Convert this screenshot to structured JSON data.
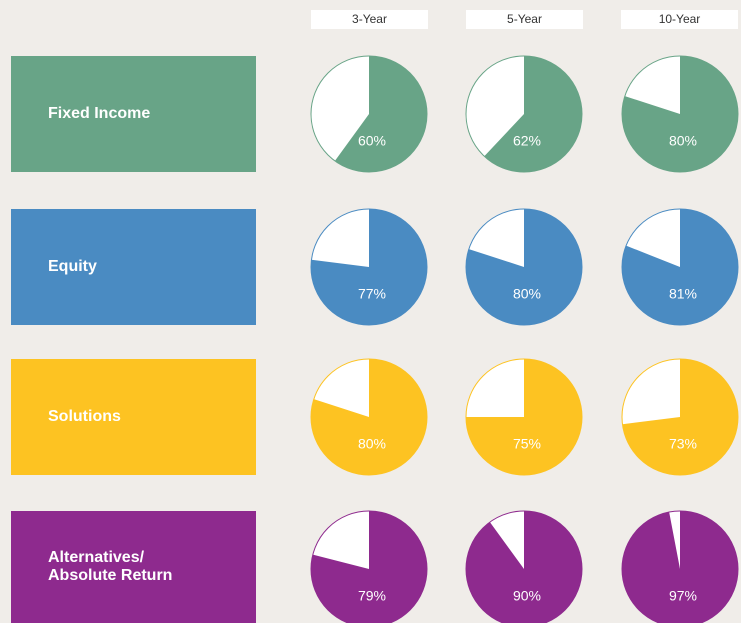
{
  "chart_data": {
    "type": "pie",
    "columns": [
      "3-Year",
      "5-Year",
      "10-Year"
    ],
    "rows": [
      {
        "name": "Fixed Income",
        "color": "#68a487",
        "values": [
          60,
          62,
          80
        ],
        "value_labels": [
          "60%",
          "62%",
          "80%"
        ]
      },
      {
        "name": "Equity",
        "color": "#4a8bc2",
        "values": [
          77,
          80,
          81
        ],
        "value_labels": [
          "77%",
          "80%",
          "81%"
        ]
      },
      {
        "name": "Solutions",
        "color": "#fdc322",
        "values": [
          80,
          75,
          73
        ],
        "value_labels": [
          "80%",
          "75%",
          "73%"
        ]
      },
      {
        "name": "Alternatives/\nAbsolute Return",
        "color": "#8e2a8e",
        "values": [
          79,
          90,
          97
        ],
        "value_labels": [
          "79%",
          "90%",
          "97%"
        ]
      }
    ]
  }
}
